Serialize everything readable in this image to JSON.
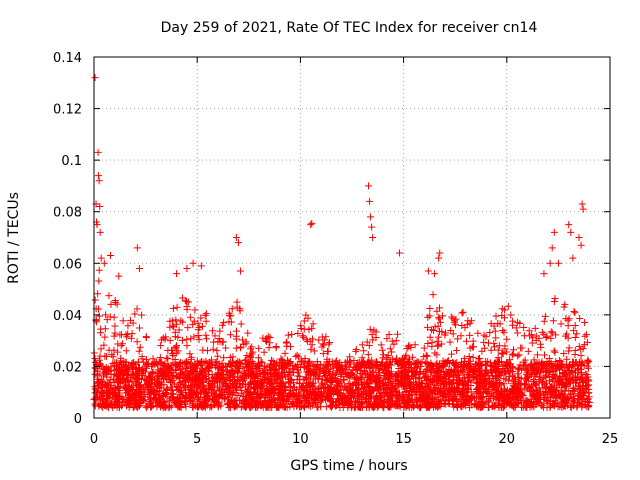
{
  "chart_data": {
    "type": "scatter",
    "title": "Day 259 of 2021, Rate Of TEC Index for receiver cn14",
    "xlabel": "GPS time / hours",
    "ylabel": "ROTI / TECUs",
    "xlim": [
      0,
      25
    ],
    "ylim": [
      0,
      0.14
    ],
    "xticks": [
      0,
      5,
      10,
      15,
      20,
      25
    ],
    "yticks": [
      0,
      0.02,
      0.04,
      0.06,
      0.08,
      0.1,
      0.12,
      0.14
    ],
    "xtick_labels": [
      "0",
      "5",
      "10",
      "15",
      "20",
      "25"
    ],
    "ytick_labels": [
      "0",
      "0.02",
      "0.04",
      "0.06",
      "0.08",
      "0.1",
      "0.12",
      "0.14"
    ],
    "grid": true,
    "marker": "+",
    "color": "#ff0000",
    "series": [
      {
        "name": "ROTI",
        "x_range": [
          0,
          24
        ],
        "envelope": [
          [
            0.0,
            0.045
          ],
          [
            0.2,
            0.06
          ],
          [
            0.5,
            0.055
          ],
          [
            1.0,
            0.05
          ],
          [
            1.5,
            0.035
          ],
          [
            2.0,
            0.048
          ],
          [
            2.5,
            0.035
          ],
          [
            3.0,
            0.03
          ],
          [
            3.5,
            0.04
          ],
          [
            4.0,
            0.045
          ],
          [
            4.5,
            0.05
          ],
          [
            5.0,
            0.045
          ],
          [
            5.5,
            0.04
          ],
          [
            6.0,
            0.035
          ],
          [
            6.5,
            0.04
          ],
          [
            7.0,
            0.05
          ],
          [
            7.5,
            0.035
          ],
          [
            8.0,
            0.03
          ],
          [
            8.5,
            0.035
          ],
          [
            9.0,
            0.025
          ],
          [
            9.5,
            0.035
          ],
          [
            10.0,
            0.04
          ],
          [
            10.5,
            0.04
          ],
          [
            11.0,
            0.035
          ],
          [
            11.5,
            0.028
          ],
          [
            12.0,
            0.022
          ],
          [
            12.5,
            0.025
          ],
          [
            13.0,
            0.03
          ],
          [
            13.5,
            0.04
          ],
          [
            14.0,
            0.03
          ],
          [
            14.5,
            0.038
          ],
          [
            15.0,
            0.03
          ],
          [
            15.5,
            0.028
          ],
          [
            16.0,
            0.035
          ],
          [
            16.5,
            0.05
          ],
          [
            17.0,
            0.038
          ],
          [
            17.5,
            0.04
          ],
          [
            18.0,
            0.042
          ],
          [
            18.5,
            0.04
          ],
          [
            19.0,
            0.045
          ],
          [
            19.5,
            0.04
          ],
          [
            20.0,
            0.045
          ],
          [
            20.5,
            0.038
          ],
          [
            21.0,
            0.035
          ],
          [
            21.5,
            0.035
          ],
          [
            22.0,
            0.045
          ],
          [
            22.5,
            0.048
          ],
          [
            23.0,
            0.045
          ],
          [
            23.5,
            0.04
          ],
          [
            24.0,
            0.035
          ]
        ],
        "outliers": [
          [
            0.05,
            0.132
          ],
          [
            0.1,
            0.083
          ],
          [
            0.12,
            0.076
          ],
          [
            0.15,
            0.075
          ],
          [
            0.2,
            0.103
          ],
          [
            0.22,
            0.094
          ],
          [
            0.25,
            0.092
          ],
          [
            0.28,
            0.082
          ],
          [
            0.3,
            0.072
          ],
          [
            0.35,
            0.062
          ],
          [
            0.5,
            0.06
          ],
          [
            0.8,
            0.063
          ],
          [
            1.2,
            0.055
          ],
          [
            2.1,
            0.066
          ],
          [
            2.2,
            0.058
          ],
          [
            4.0,
            0.056
          ],
          [
            4.5,
            0.058
          ],
          [
            4.8,
            0.06
          ],
          [
            5.2,
            0.059
          ],
          [
            6.9,
            0.07
          ],
          [
            7.0,
            0.068
          ],
          [
            7.1,
            0.057
          ],
          [
            10.5,
            0.075
          ],
          [
            10.55,
            0.0755
          ],
          [
            13.3,
            0.09
          ],
          [
            13.35,
            0.084
          ],
          [
            13.4,
            0.078
          ],
          [
            13.45,
            0.074
          ],
          [
            13.5,
            0.07
          ],
          [
            14.8,
            0.064
          ],
          [
            16.2,
            0.057
          ],
          [
            16.5,
            0.056
          ],
          [
            16.7,
            0.062
          ],
          [
            16.75,
            0.064
          ],
          [
            21.8,
            0.056
          ],
          [
            22.1,
            0.06
          ],
          [
            22.2,
            0.066
          ],
          [
            22.3,
            0.072
          ],
          [
            22.5,
            0.06
          ],
          [
            23.0,
            0.075
          ],
          [
            23.1,
            0.072
          ],
          [
            23.2,
            0.062
          ],
          [
            23.5,
            0.07
          ],
          [
            23.6,
            0.067
          ],
          [
            23.65,
            0.083
          ],
          [
            23.7,
            0.081
          ]
        ]
      }
    ]
  }
}
